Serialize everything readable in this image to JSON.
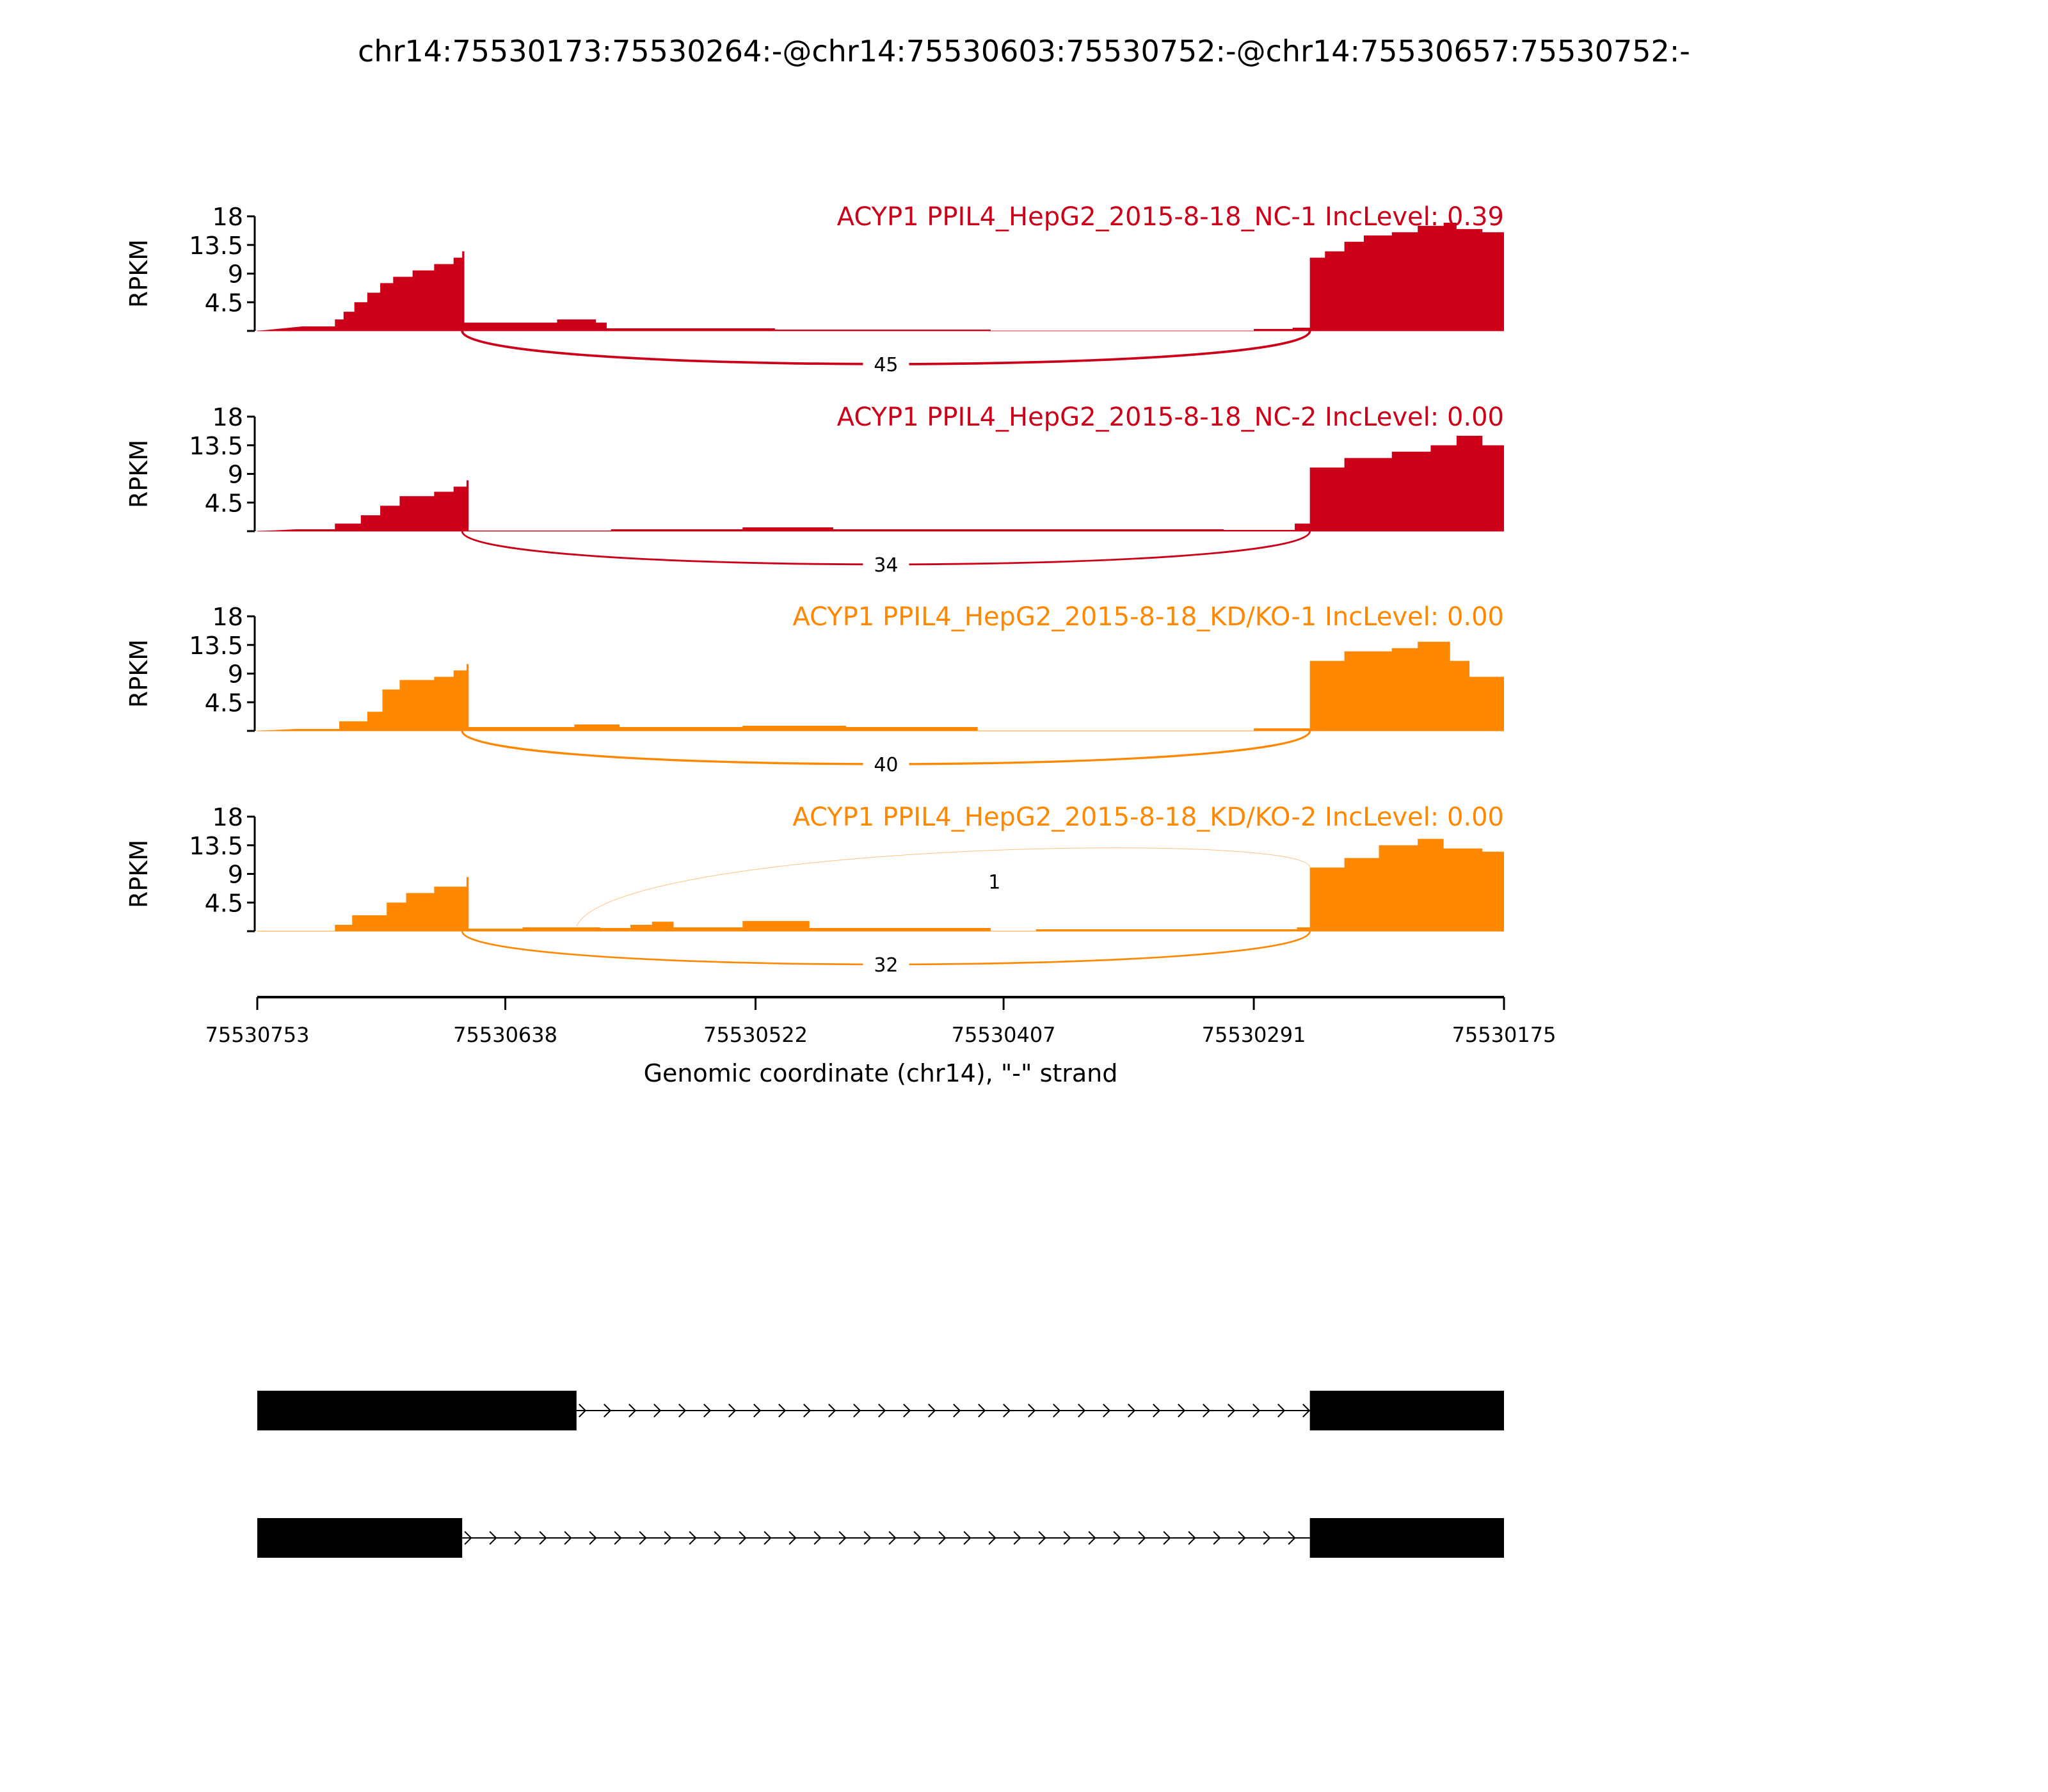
{
  "chart_data": {
    "type": "area",
    "title": "chr14:75530173:75530264:-@chr14:75530603:75530752:-@chr14:75530657:75530752:-",
    "xlabel": "Genomic coordinate (chr14), \"-\" strand",
    "ylabel": "RPKM",
    "xlim": [
      75530753,
      75530175
    ],
    "x_ticks": [
      "75530753",
      "75530638",
      "75530522",
      "75530407",
      "75530291",
      "75530175"
    ],
    "ylim": [
      0,
      18
    ],
    "y_ticks": [
      "18",
      "13.5",
      "9",
      "4.5"
    ],
    "panels": [
      {
        "label": "ACYP1 PPIL4_HepG2_2015-8-18_NC-1 IncLevel: 0.39",
        "color": "#CC0018",
        "coverage": [
          [
            75530732,
            0.7
          ],
          [
            75530717,
            1.8
          ],
          [
            75530713,
            3
          ],
          [
            75530708,
            4.5
          ],
          [
            75530702,
            6
          ],
          [
            75530696,
            7.5
          ],
          [
            75530690,
            8.5
          ],
          [
            75530681,
            9.5
          ],
          [
            75530671,
            10.5
          ],
          [
            75530662,
            11.5
          ],
          [
            75530658,
            12.5
          ],
          [
            75530657,
            1.3
          ],
          [
            75530614,
            1.8
          ],
          [
            75530596,
            1.3
          ],
          [
            75530591,
            0.4
          ],
          [
            75530513,
            0.2
          ],
          [
            75530413,
            0
          ],
          [
            75530291,
            0.3
          ],
          [
            75530273,
            0.5
          ],
          [
            75530265,
            11.5
          ],
          [
            75530258,
            12.5
          ],
          [
            75530249,
            14
          ],
          [
            75530240,
            15
          ],
          [
            75530227,
            15.5
          ],
          [
            75530215,
            16.5
          ],
          [
            75530203,
            17
          ],
          [
            75530197,
            16
          ],
          [
            75530185,
            15.5
          ],
          [
            75530175,
            15
          ]
        ],
        "junctions": [
          {
            "from": 75530658,
            "to": 75530265,
            "count": "45",
            "side": "below"
          }
        ]
      },
      {
        "label": "ACYP1 PPIL4_HepG2_2015-8-18_NC-2 IncLevel: 0.00",
        "color": "#CC0018",
        "coverage": [
          [
            75530735,
            0.3
          ],
          [
            75530717,
            1.2
          ],
          [
            75530705,
            2.5
          ],
          [
            75530696,
            4
          ],
          [
            75530687,
            5.5
          ],
          [
            75530671,
            6.2
          ],
          [
            75530662,
            7
          ],
          [
            75530656,
            8
          ],
          [
            75530655,
            0.1
          ],
          [
            75530589,
            0.3
          ],
          [
            75530528,
            0.6
          ],
          [
            75530486,
            0.3
          ],
          [
            75530305,
            0.2
          ],
          [
            75530272,
            1.2
          ],
          [
            75530265,
            10
          ],
          [
            75530249,
            11.5
          ],
          [
            75530227,
            12.5
          ],
          [
            75530209,
            13.5
          ],
          [
            75530197,
            15
          ],
          [
            75530185,
            13.5
          ],
          [
            75530175,
            14
          ]
        ],
        "junctions": [
          {
            "from": 75530658,
            "to": 75530265,
            "count": "34",
            "side": "below"
          }
        ]
      },
      {
        "label": "ACYP1 PPIL4_HepG2_2015-8-18_KD/KO-1 IncLevel: 0.00",
        "color": "#FF8800",
        "coverage": [
          [
            75530735,
            0.3
          ],
          [
            75530715,
            1.5
          ],
          [
            75530702,
            3
          ],
          [
            75530695,
            6.5
          ],
          [
            75530687,
            8
          ],
          [
            75530671,
            8.5
          ],
          [
            75530662,
            9.5
          ],
          [
            75530656,
            10.5
          ],
          [
            75530655,
            0.6
          ],
          [
            75530606,
            1
          ],
          [
            75530585,
            0.6
          ],
          [
            75530528,
            0.8
          ],
          [
            75530480,
            0.6
          ],
          [
            75530419,
            0
          ],
          [
            75530291,
            0.4
          ],
          [
            75530265,
            11
          ],
          [
            75530249,
            12.5
          ],
          [
            75530227,
            13
          ],
          [
            75530215,
            14
          ],
          [
            75530200,
            11
          ],
          [
            75530191,
            8.5
          ],
          [
            75530175,
            8.5
          ]
        ],
        "junctions": [
          {
            "from": 75530658,
            "to": 75530265,
            "count": "40",
            "side": "below"
          }
        ]
      },
      {
        "label": "ACYP1 PPIL4_HepG2_2015-8-18_KD/KO-2 IncLevel: 0.00",
        "color": "#FF8800",
        "coverage": [
          [
            75530735,
            0
          ],
          [
            75530717,
            1
          ],
          [
            75530709,
            2.5
          ],
          [
            75530693,
            4.5
          ],
          [
            75530684,
            6
          ],
          [
            75530671,
            7
          ],
          [
            75530656,
            8.5
          ],
          [
            75530655,
            0.4
          ],
          [
            75530630,
            0.6
          ],
          [
            75530594,
            0.5
          ],
          [
            75530580,
            1
          ],
          [
            75530570,
            1.5
          ],
          [
            75530560,
            0.6
          ],
          [
            75530528,
            1.6
          ],
          [
            75530497,
            0.5
          ],
          [
            75530413,
            0
          ],
          [
            75530392,
            0.3
          ],
          [
            75530285,
            0.3
          ],
          [
            75530271,
            0.6
          ],
          [
            75530265,
            10
          ],
          [
            75530249,
            11.5
          ],
          [
            75530233,
            13.5
          ],
          [
            75530215,
            14.5
          ],
          [
            75530203,
            13
          ],
          [
            75530185,
            12.5
          ],
          [
            75530175,
            12
          ]
        ],
        "junctions": [
          {
            "from": 75530658,
            "to": 75530265,
            "count": "32",
            "side": "below"
          },
          {
            "from": 75530605,
            "to": 75530265,
            "count": "1",
            "side": "above"
          }
        ]
      }
    ],
    "gene_models": [
      {
        "exons": [
          [
            75530753,
            75530605
          ],
          [
            75530265,
            75530175
          ]
        ]
      },
      {
        "exons": [
          [
            75530753,
            75530658
          ],
          [
            75530265,
            75530175
          ]
        ]
      }
    ]
  }
}
